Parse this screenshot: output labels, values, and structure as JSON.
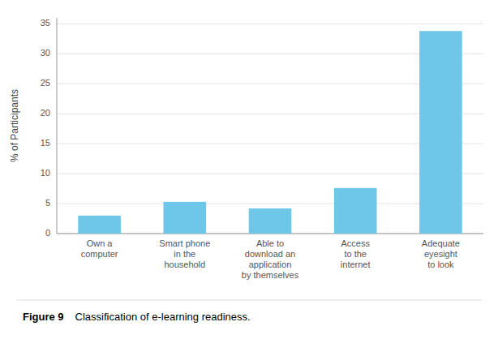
{
  "chart_data": {
    "type": "bar",
    "title": "Figure 9",
    "subtitle": "Classification of e-learning readiness.",
    "categories": [
      "Own a\ncomputer",
      "Smart phone\nin the\nhousehold",
      "Able to\ndownload an\napplication\nby themselves",
      "Access\nto the\ninternet",
      "Adequate\neyesight\nto look"
    ],
    "values": [
      3.0,
      5.3,
      4.2,
      7.6,
      33.8
    ],
    "color": "#6ec6e8",
    "ylabel": "% of Participants",
    "ylim": [
      0,
      36
    ],
    "yticks": [
      0,
      5,
      10,
      15,
      20,
      25,
      30,
      35
    ],
    "grid": true
  }
}
